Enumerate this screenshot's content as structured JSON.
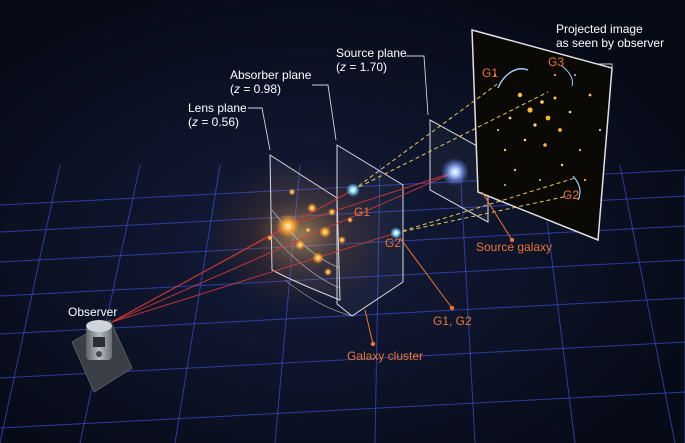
{
  "labels": {
    "observer": "Observer",
    "lens_plane": {
      "name": "Lens plane",
      "z_var": "z",
      "z_rest": " = 0.56)"
    },
    "absorber_plane": {
      "name": "Absorber plane",
      "z_var": "z",
      "z_rest": " = 0.98)"
    },
    "source_plane": {
      "name": "Source plane",
      "z_var": "z",
      "z_rest": " = 1.70)"
    },
    "projected_image": {
      "line1": "Projected image",
      "line2": "as seen by observer"
    },
    "galaxy_cluster": "Galaxy cluster",
    "source_galaxy": "Source galaxy",
    "g1_g2": "G1, G2",
    "g1": "G1",
    "g2": "G2",
    "image_g1": "G1",
    "image_g2": "G2",
    "image_g3": "G3"
  },
  "colors": {
    "background": "#070b18",
    "grid": "#3a4cc8",
    "annotation": "#e8763a",
    "plane_outline": "#d8d8e0",
    "ray": "#d23a3a",
    "sightline": "#e8c860",
    "source_glow": "#7fa8ff",
    "cluster_glow": "#ffb040"
  },
  "icons": {
    "observer": "telescope-icon"
  }
}
